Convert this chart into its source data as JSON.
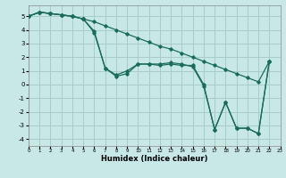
{
  "xlabel": "Humidex (Indice chaleur)",
  "bg_color": "#c8e8e8",
  "grid_color": "#a8cccc",
  "line_color": "#1a6b5a",
  "series": [
    [
      5.0,
      5.3,
      5.2,
      5.1,
      5.0,
      4.8,
      4.6,
      4.3,
      4.0,
      3.7,
      3.4,
      3.1,
      2.8,
      2.6,
      2.3,
      2.0,
      1.7,
      1.4,
      1.1,
      0.8,
      0.5,
      0.2,
      1.7
    ],
    [
      5.0,
      5.3,
      5.2,
      5.1,
      5.0,
      4.8,
      3.8,
      1.2,
      0.6,
      0.8,
      1.5,
      1.5,
      1.4,
      1.5,
      1.4,
      1.4,
      0.0,
      -3.3,
      -1.3,
      -3.2,
      -3.2,
      -3.6,
      1.7
    ],
    [
      5.0,
      5.3,
      5.2,
      5.1,
      5.0,
      4.8,
      3.9,
      1.2,
      0.7,
      1.0,
      1.5,
      1.5,
      1.5,
      1.6,
      1.5,
      1.3,
      -0.1,
      -3.3,
      -1.3,
      -3.2,
      -3.2,
      -3.6,
      1.7
    ]
  ],
  "xlim": [
    0,
    23
  ],
  "ylim": [
    -4.5,
    5.8
  ],
  "xticks": [
    0,
    1,
    2,
    3,
    4,
    5,
    6,
    7,
    8,
    9,
    10,
    11,
    12,
    13,
    14,
    15,
    16,
    17,
    18,
    19,
    20,
    21,
    22,
    23
  ],
  "yticks": [
    -4,
    -3,
    -2,
    -1,
    0,
    1,
    2,
    3,
    4,
    5
  ]
}
